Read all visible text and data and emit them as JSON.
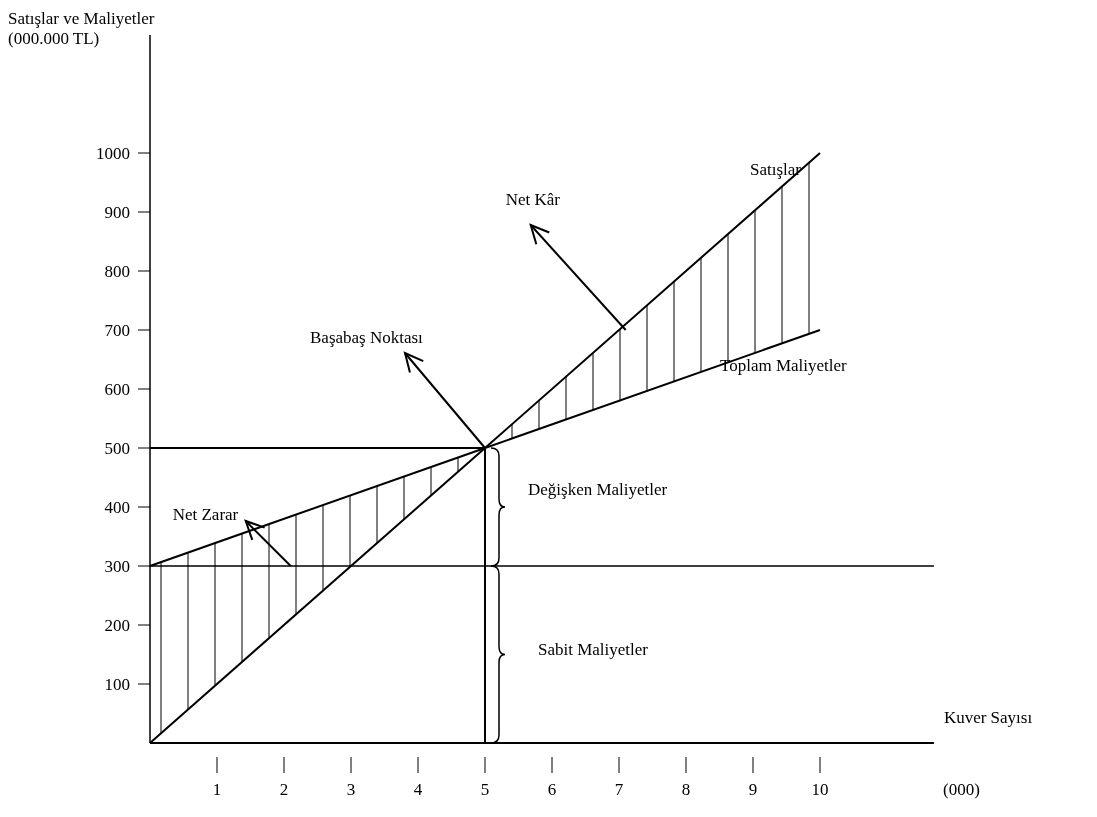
{
  "chart_data": {
    "type": "line",
    "ylabel": "Satışlar ve Maliyetler\n(000.000 TL)",
    "xlabel": "Kuver Sayısı",
    "xlim": [
      0,
      11.7
    ],
    "xticks": [
      1,
      2,
      3,
      4,
      5,
      6,
      7,
      8,
      9,
      10
    ],
    "ylim": [
      0,
      1200
    ],
    "yticks": [
      100,
      200,
      300,
      400,
      500,
      600,
      700,
      800,
      900,
      1000
    ],
    "series": [
      {
        "name": "Satışlar",
        "color": "#000000",
        "x": [
          0,
          5,
          10
        ],
        "values": [
          0,
          500,
          1000
        ]
      },
      {
        "name": "Toplam Maliyetler",
        "color": "#000000",
        "x": [
          0,
          5,
          10
        ],
        "values": [
          300,
          500,
          700
        ]
      },
      {
        "color": "#000000",
        "x": [
          0,
          5
        ],
        "values": [
          500,
          500
        ]
      },
      {
        "color": "#000000",
        "x": [
          5,
          5
        ],
        "values": [
          0,
          500
        ]
      }
    ],
    "ref_lines": [
      {
        "axis": "y",
        "value": 300,
        "color": "#000000"
      }
    ],
    "annotations": [
      {
        "text": "Başabaş Noktası",
        "x": 5,
        "y": 500
      },
      {
        "text": "Net Kâr",
        "x": 7.1,
        "y": 700
      },
      {
        "text": "Net Zarar",
        "x": 2.1,
        "y": 300
      },
      "Değişken Maliyetler",
      "Sabit Maliyetler",
      "(000)"
    ],
    "grid": false,
    "marker": "none",
    "line_style": "solid"
  }
}
